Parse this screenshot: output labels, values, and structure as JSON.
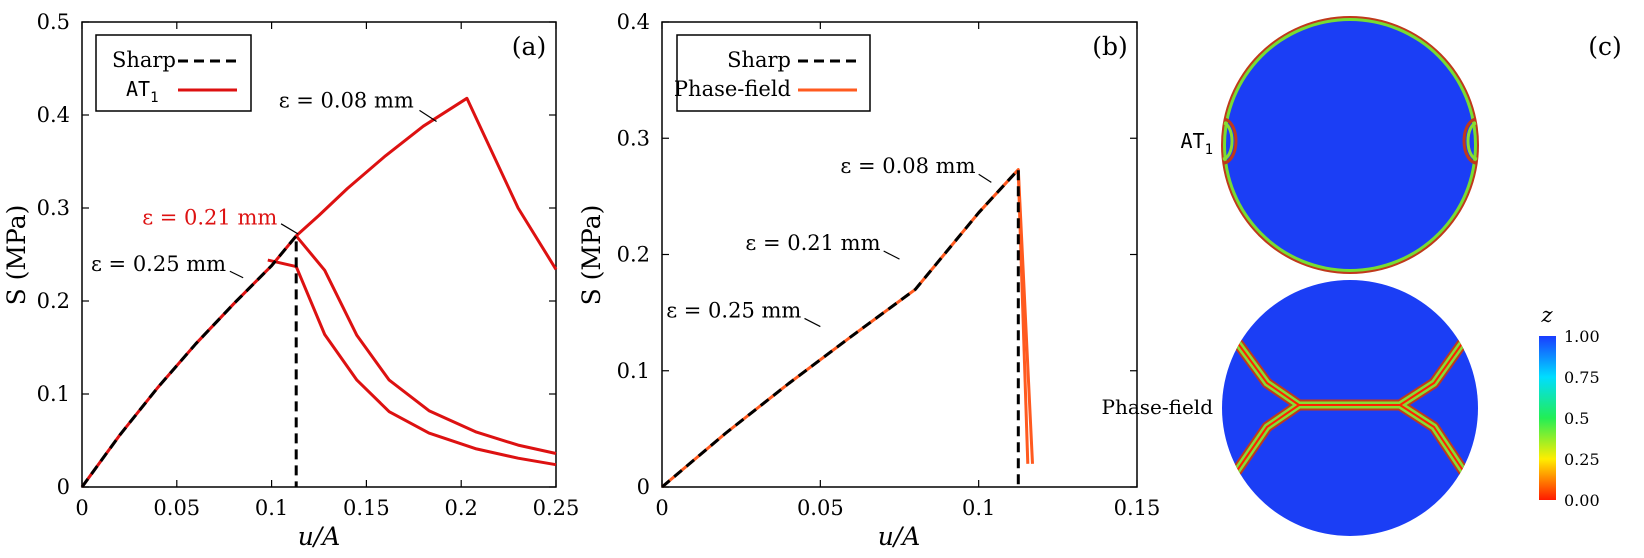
{
  "chart_data": [
    {
      "id": "a",
      "type": "line",
      "panel_label": "(a)",
      "xlabel": "u/A",
      "ylabel": "S (MPa)",
      "xlim": [
        0,
        0.25
      ],
      "ylim": [
        0,
        0.5
      ],
      "xticks": [
        "0",
        "0.05",
        "0.1",
        "0.15",
        "0.2",
        "0.25"
      ],
      "yticks": [
        "0",
        "0.1",
        "0.2",
        "0.3",
        "0.4",
        "0.5"
      ],
      "grid": false,
      "legend_position": "top-left",
      "legend": [
        {
          "label": "Sharp",
          "style": "dashed",
          "color": "#000000"
        },
        {
          "label": "AT",
          "subscript": "1",
          "mono": true,
          "style": "solid",
          "color": "#dd1111"
        }
      ],
      "series": [
        {
          "name": "AT1 ε = 0.08 mm",
          "color": "#dd1111",
          "style": "solid",
          "x": [
            0,
            0.02,
            0.04,
            0.06,
            0.08,
            0.1,
            0.113,
            0.125,
            0.14,
            0.16,
            0.18,
            0.203,
            0.23,
            0.25
          ],
          "y": [
            0,
            0.056,
            0.107,
            0.154,
            0.197,
            0.238,
            0.27,
            0.292,
            0.321,
            0.356,
            0.388,
            0.418,
            0.3,
            0.234
          ]
        },
        {
          "name": "AT1 ε = 0.21 mm",
          "color": "#dd1111",
          "style": "solid",
          "x": [
            0.113,
            0.128,
            0.145,
            0.162,
            0.183,
            0.208,
            0.23,
            0.25
          ],
          "y": [
            0.27,
            0.233,
            0.163,
            0.115,
            0.082,
            0.059,
            0.045,
            0.036
          ]
        },
        {
          "name": "AT1 ε = 0.25 mm",
          "color": "#dd1111",
          "style": "solid",
          "x": [
            0.098,
            0.113,
            0.128,
            0.145,
            0.162,
            0.183,
            0.208,
            0.23,
            0.25
          ],
          "y": [
            0.244,
            0.237,
            0.164,
            0.115,
            0.081,
            0.058,
            0.041,
            0.031,
            0.024
          ]
        },
        {
          "name": "Sharp",
          "color": "#000000",
          "style": "dashed",
          "x": [
            0,
            0.02,
            0.04,
            0.06,
            0.08,
            0.1,
            0.113,
            0.113
          ],
          "y": [
            0,
            0.056,
            0.107,
            0.154,
            0.197,
            0.238,
            0.27,
            0
          ]
        }
      ],
      "annotations": [
        {
          "text": "ε = 0.08 mm",
          "color": "#000000",
          "x": 0.175,
          "y": 0.408,
          "anchor": "end",
          "pointer": [
            0.178,
            0.405,
            0.187,
            0.393
          ]
        },
        {
          "text": "ε = 0.21 mm",
          "color": "#dd1111",
          "x": 0.103,
          "y": 0.282,
          "anchor": "end",
          "pointer": [
            0.105,
            0.283,
            0.114,
            0.272
          ]
        },
        {
          "text": "ε = 0.25 mm",
          "color": "#000000",
          "x": 0.076,
          "y": 0.232,
          "anchor": "end",
          "pointer": [
            0.078,
            0.232,
            0.085,
            0.225
          ]
        }
      ]
    },
    {
      "id": "b",
      "type": "line",
      "panel_label": "(b)",
      "xlabel": "u/A",
      "ylabel": "S (MPa)",
      "xlim": [
        0,
        0.15
      ],
      "ylim": [
        0,
        0.4
      ],
      "xticks": [
        "0",
        "0.05",
        "0.1",
        "0.15"
      ],
      "yticks": [
        "0",
        "0.1",
        "0.2",
        "0.3",
        "0.4"
      ],
      "grid": false,
      "legend_position": "top-left",
      "legend": [
        {
          "label": "Sharp",
          "style": "dashed",
          "color": "#000000"
        },
        {
          "label": "Phase-field",
          "style": "solid",
          "color": "#ff5a1f"
        }
      ],
      "series": [
        {
          "name": "Phase-field ε = 0.08 mm",
          "color": "#ff5a1f",
          "style": "solid",
          "x": [
            0,
            0.02,
            0.04,
            0.06,
            0.08,
            0.1,
            0.1125,
            0.117
          ],
          "y": [
            0,
            0.046,
            0.089,
            0.13,
            0.17,
            0.236,
            0.273,
            0.02
          ]
        },
        {
          "name": "Phase-field ε = 0.21 mm",
          "color": "#ff5a1f",
          "style": "solid",
          "x": [
            0.1125,
            0.1155
          ],
          "y": [
            0.27,
            0.02
          ]
        },
        {
          "name": "Sharp",
          "color": "#000000",
          "style": "dashed",
          "x": [
            0,
            0.02,
            0.04,
            0.06,
            0.08,
            0.1,
            0.1125,
            0.1125
          ],
          "y": [
            0,
            0.046,
            0.089,
            0.13,
            0.17,
            0.236,
            0.273,
            0
          ]
        }
      ],
      "annotations": [
        {
          "text": "ε = 0.08 mm",
          "color": "#000000",
          "x": 0.099,
          "y": 0.27,
          "anchor": "end",
          "pointer": [
            0.1,
            0.269,
            0.104,
            0.262
          ]
        },
        {
          "text": "ε = 0.21 mm",
          "color": "#000000",
          "x": 0.069,
          "y": 0.204,
          "anchor": "end",
          "pointer": [
            0.07,
            0.203,
            0.075,
            0.196
          ]
        },
        {
          "text": "ε = 0.25 mm",
          "color": "#000000",
          "x": 0.044,
          "y": 0.146,
          "anchor": "end",
          "pointer": [
            0.045,
            0.145,
            0.05,
            0.138
          ]
        }
      ]
    }
  ],
  "panel_c": {
    "label": "(c)",
    "top_row_label": "AT",
    "top_row_subscript": "1",
    "bottom_row_label": "Phase-field",
    "colorbar": {
      "title": "z",
      "ticks": [
        "1.00",
        "0.75",
        "0.5",
        "0.25",
        "0.00"
      ],
      "gradient": [
        "#1a3cff",
        "#00ddff",
        "#22ee55",
        "#ffee00",
        "#ff1a00"
      ]
    },
    "disk_fill": "#1b3ef5"
  }
}
